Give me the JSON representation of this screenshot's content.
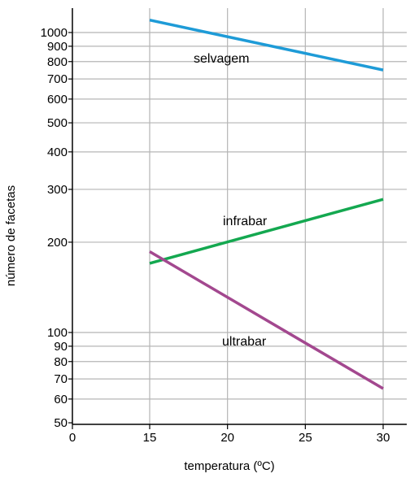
{
  "chart_data": {
    "type": "line",
    "title": "",
    "xlabel": "temperatura (ºC)",
    "ylabel": "número de facetas",
    "xlim": [
      0,
      30
    ],
    "ylim": [
      50,
      1500
    ],
    "y_scale": "log",
    "grid": true,
    "x_ticks": [
      0,
      15,
      20,
      25,
      30
    ],
    "y_ticks": [
      50,
      60,
      70,
      80,
      90,
      100,
      200,
      300,
      400,
      500,
      600,
      700,
      800,
      900,
      1000
    ],
    "series": [
      {
        "name": "selvagem",
        "color": "#1e9bd7",
        "x": [
          15,
          30
        ],
        "y": [
          1100,
          750
        ]
      },
      {
        "name": "infrabar",
        "color": "#14a850",
        "x": [
          15,
          30
        ],
        "y": [
          170,
          278
        ]
      },
      {
        "name": "ultrabar",
        "color": "#a3488f",
        "x": [
          15,
          30
        ],
        "y": [
          186,
          65
        ]
      }
    ]
  }
}
